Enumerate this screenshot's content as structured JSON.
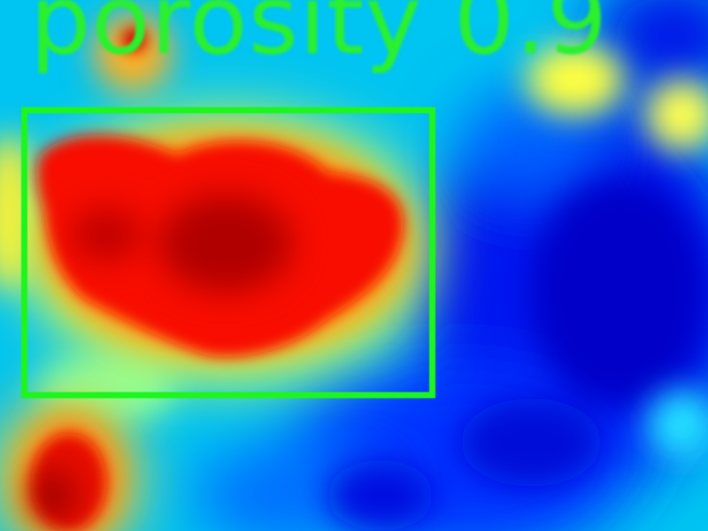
{
  "overlay_label": "porosity 0.9",
  "colors": {
    "box": "#1ef51e",
    "label": "#2af02e",
    "colormap": [
      "#00008f",
      "#0000ff",
      "#0080ff",
      "#00ffff",
      "#80ff80",
      "#ffff00",
      "#ff8000",
      "#ff0000",
      "#8f0000"
    ]
  },
  "detection": {
    "label_ref": "overlay_label"
  }
}
